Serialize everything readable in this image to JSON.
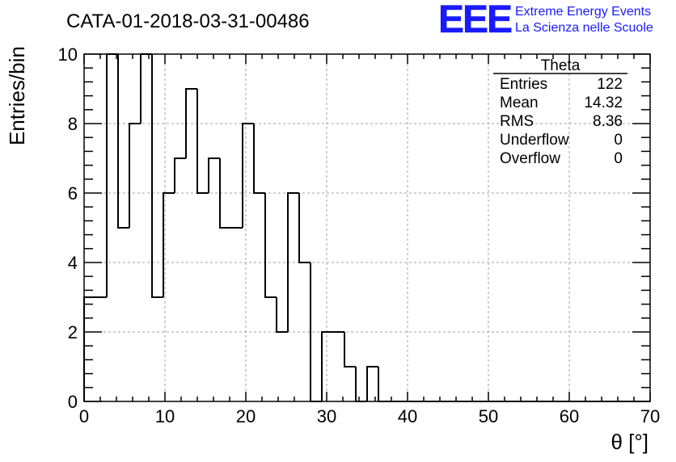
{
  "header": {
    "run_title": "CATA-01-2018-03-31-00486",
    "logo_text": "EEE",
    "logo_line1": "Extreme Energy Events",
    "logo_line2": "La Scienza nelle Scuole"
  },
  "stats_box": {
    "name": "Theta",
    "rows": [
      {
        "label": "Entries",
        "value": "122"
      },
      {
        "label": "Mean",
        "value": "14.32"
      },
      {
        "label": "RMS",
        "value": "8.36"
      },
      {
        "label": "Underflow",
        "value": "0"
      },
      {
        "label": "Overflow",
        "value": "0"
      }
    ]
  },
  "chart_data": {
    "type": "bar",
    "style": "step-histogram",
    "title": "CATA-01-2018-03-31-00486",
    "xlabel": "θ [°]",
    "ylabel": "Entries/bin",
    "xlim": [
      0,
      70
    ],
    "ylim": [
      0,
      10
    ],
    "grid": true,
    "legend": "top-right",
    "x_ticks": [
      "0",
      "10",
      "20",
      "30",
      "40",
      "50",
      "60",
      "70"
    ],
    "y_ticks": [
      "0",
      "2",
      "4",
      "6",
      "8",
      "10"
    ],
    "bin_width": 1.4,
    "bin_edges_start": 0,
    "values": [
      3,
      3,
      10,
      5,
      8,
      10,
      3,
      6,
      7,
      9,
      6,
      7,
      5,
      5,
      8,
      6,
      3,
      2,
      6,
      4,
      0,
      2,
      2,
      1,
      0,
      1,
      0,
      0,
      0,
      0,
      0,
      0,
      0,
      0,
      0,
      0,
      0,
      0,
      0,
      0,
      0,
      0,
      0,
      0,
      0,
      0,
      0,
      0,
      0,
      0
    ],
    "colors": {
      "line": "#000000",
      "logo": "#1a1aff"
    }
  }
}
